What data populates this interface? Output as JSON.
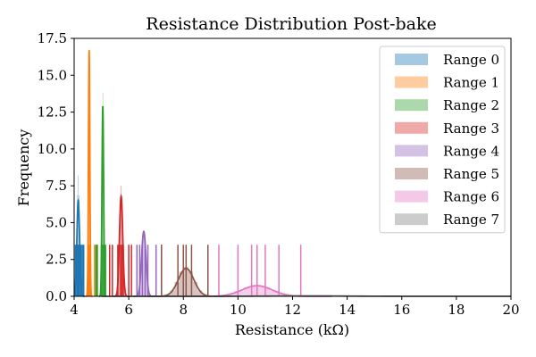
{
  "chart_data": {
    "type": "area",
    "title": "Resistance Distribution Post-bake",
    "xlabel": "Resistance (kΩ)",
    "ylabel": "Frequency",
    "xlim": [
      4,
      20
    ],
    "ylim": [
      0,
      17.5
    ],
    "xticks": [
      "4",
      "6",
      "8",
      "10",
      "12",
      "14",
      "16",
      "18",
      "20"
    ],
    "yticks": [
      "0.0",
      "2.5",
      "5.0",
      "7.5",
      "10.0",
      "12.5",
      "15.0",
      "17.5"
    ],
    "grid": false,
    "legend_position": "top-right",
    "series": [
      {
        "name": "Range 0",
        "color": "#1f77b4",
        "peak_x": 4.15,
        "peak_y": 6.5,
        "width": 0.05,
        "hist_max": 8.2,
        "rug": [
          4.05,
          4.1,
          4.12,
          4.15,
          4.18,
          4.2,
          4.25,
          4.3,
          4.35
        ]
      },
      {
        "name": "Range 1",
        "color": "#ff7f0e",
        "peak_x": 4.55,
        "peak_y": 16.7,
        "width": 0.025,
        "hist_max": 16.7,
        "rug": [
          4.5,
          4.52,
          4.55,
          4.57,
          4.6,
          4.75,
          4.82
        ]
      },
      {
        "name": "Range 2",
        "color": "#2ca02c",
        "peak_x": 5.05,
        "peak_y": 12.9,
        "width": 0.03,
        "hist_max": 13.8,
        "rug": [
          4.8,
          4.85,
          5.0,
          5.05,
          5.1,
          5.15
        ]
      },
      {
        "name": "Range 3",
        "color": "#d62728",
        "peak_x": 5.72,
        "peak_y": 6.8,
        "width": 0.06,
        "hist_max": 7.5,
        "rug": [
          5.3,
          5.4,
          5.6,
          5.7,
          5.75,
          5.8,
          6.0,
          6.1
        ]
      },
      {
        "name": "Range 4",
        "color": "#9467bd",
        "peak_x": 6.55,
        "peak_y": 4.4,
        "width": 0.08,
        "hist_max": 4.4,
        "rug": [
          6.3,
          6.4,
          6.5,
          6.6,
          6.7,
          7.0,
          7.2
        ]
      },
      {
        "name": "Range 5",
        "color": "#8c564b",
        "peak_x": 8.1,
        "peak_y": 1.9,
        "width": 0.28,
        "hist_max": 2.0,
        "rug": [
          7.2,
          7.8,
          8.0,
          8.1,
          8.3,
          8.9
        ]
      },
      {
        "name": "Range 6",
        "color": "#e377c2",
        "peak_x": 10.7,
        "peak_y": 0.72,
        "width": 0.55,
        "hist_max": 0.75,
        "rug": [
          9.3,
          10.0,
          10.5,
          10.7,
          11.0,
          11.5,
          12.3
        ]
      },
      {
        "name": "Range 7",
        "color": "#7f7f7f",
        "peak_x": 12.5,
        "peak_y": 0.03,
        "width": 1.5,
        "hist_max": 0.05,
        "rug": []
      }
    ]
  }
}
